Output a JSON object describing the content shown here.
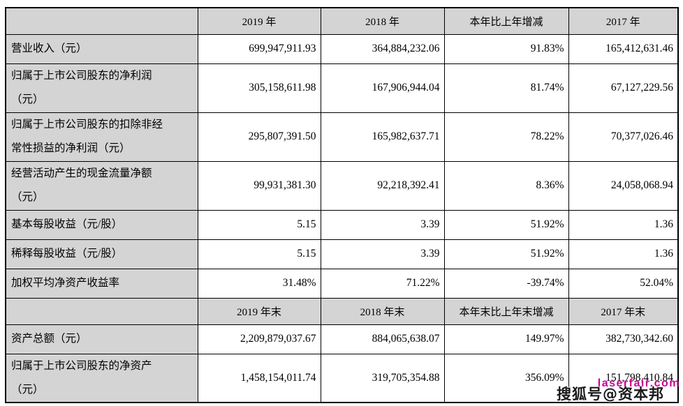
{
  "colors": {
    "header_bg": "#d4d4d4",
    "label_bg": "#d4d4d4",
    "border": "#000000",
    "watermark_pink": "#cc0099",
    "watermark_dark": "#1a1a1a"
  },
  "table": {
    "rows": [
      {
        "kind": "header",
        "cells": [
          "",
          "2019 年",
          "2018 年",
          "本年比上年增减",
          "2017 年"
        ]
      },
      {
        "kind": "single",
        "cells": [
          "营业收入（元）",
          "699,947,911.93",
          "364,884,232.06",
          "91.83%",
          "165,412,631.46"
        ]
      },
      {
        "kind": "double",
        "cells": [
          "归属于上市公司股东的净利润\n（元）",
          "305,158,611.98",
          "167,906,944.04",
          "81.74%",
          "67,127,229.56"
        ]
      },
      {
        "kind": "double",
        "cells": [
          "归属于上市公司股东的扣除非经\n常性损益的净利润（元）",
          "295,807,391.50",
          "165,982,637.71",
          "78.22%",
          "70,377,026.46"
        ]
      },
      {
        "kind": "double",
        "cells": [
          "经营活动产生的现金流量净额\n（元）",
          "99,931,381.30",
          "92,218,392.41",
          "8.36%",
          "24,058,068.94"
        ]
      },
      {
        "kind": "single",
        "cells": [
          "基本每股收益（元/股）",
          "5.15",
          "3.39",
          "51.92%",
          "1.36"
        ]
      },
      {
        "kind": "single",
        "cells": [
          "稀释每股收益（元/股）",
          "5.15",
          "3.39",
          "51.92%",
          "1.36"
        ]
      },
      {
        "kind": "single",
        "cells": [
          "加权平均净资产收益率",
          "31.48%",
          "71.22%",
          "-39.74%",
          "52.04%"
        ]
      },
      {
        "kind": "header",
        "cells": [
          "",
          "2019 年末",
          "2018 年末",
          "本年末比上年末增减",
          "2017 年末"
        ]
      },
      {
        "kind": "single",
        "cells": [
          "资产总额（元）",
          "2,209,879,037.67",
          "884,065,638.07",
          "149.97%",
          "382,730,342.60"
        ]
      },
      {
        "kind": "double",
        "cells": [
          "归属于上市公司股东的净资产\n（元）",
          "1,458,154,011.74",
          "319,705,354.88",
          "356.09%",
          "151,798,410.84"
        ]
      }
    ]
  },
  "watermarks": {
    "site": "laserfair.com",
    "account": "搜狐号@资本邦"
  }
}
